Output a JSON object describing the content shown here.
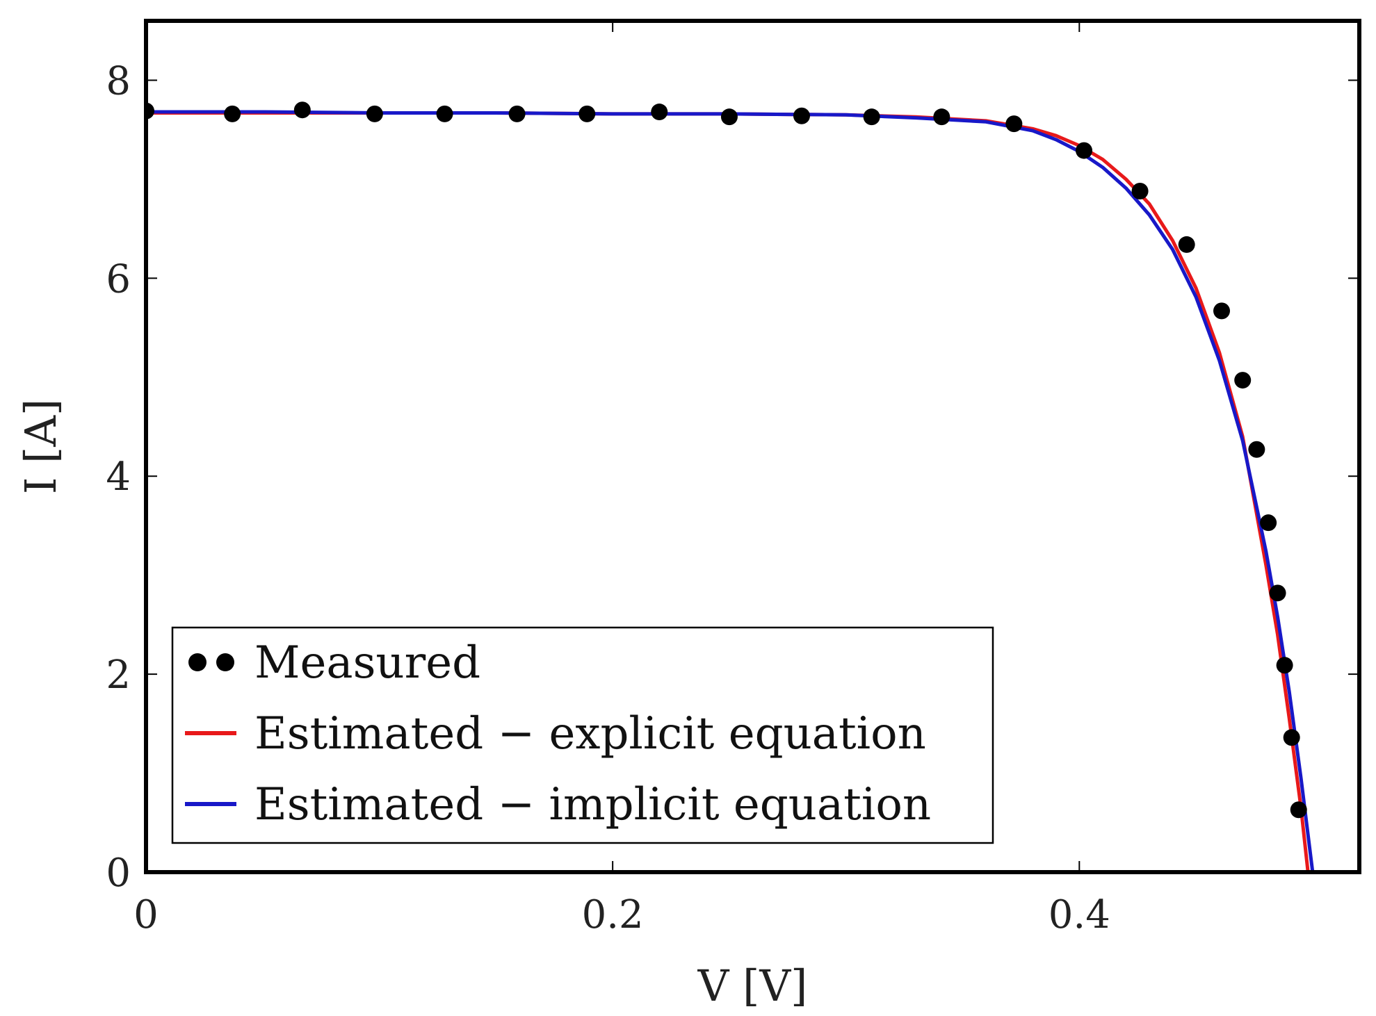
{
  "chart_data": {
    "type": "scatter",
    "title": "",
    "xlabel": "V [V]",
    "ylabel": "I [A]",
    "xlim": [
      0,
      0.52
    ],
    "ylim": [
      0,
      8.6
    ],
    "xticks": [
      0,
      0.2,
      0.4
    ],
    "xtick_labels": [
      "0",
      "0.2",
      "0.4"
    ],
    "yticks": [
      0,
      2,
      4,
      6,
      8
    ],
    "ytick_labels": [
      "0",
      "2",
      "4",
      "6",
      "8"
    ],
    "legend_position": "lower-left",
    "series": [
      {
        "name": "Measured",
        "kind": "scatter",
        "color": "#000000",
        "x": [
          0.0,
          0.037,
          0.067,
          0.098,
          0.128,
          0.159,
          0.189,
          0.22,
          0.25,
          0.281,
          0.311,
          0.341,
          0.372,
          0.402,
          0.426,
          0.446,
          0.461,
          0.47,
          0.476,
          0.481,
          0.485,
          0.488,
          0.491,
          0.494
        ],
        "y": [
          7.69,
          7.66,
          7.7,
          7.66,
          7.66,
          7.66,
          7.66,
          7.68,
          7.63,
          7.64,
          7.63,
          7.63,
          7.56,
          7.29,
          6.88,
          6.34,
          5.67,
          4.97,
          4.27,
          3.53,
          2.82,
          2.09,
          1.36,
          0.63
        ]
      },
      {
        "name": "Estimated − explicit equation",
        "kind": "line",
        "color": "#e8191a",
        "x": [
          0.0,
          0.05,
          0.1,
          0.15,
          0.2,
          0.25,
          0.3,
          0.33,
          0.36,
          0.38,
          0.39,
          0.4,
          0.41,
          0.42,
          0.43,
          0.44,
          0.45,
          0.46,
          0.47,
          0.48,
          0.485,
          0.49,
          0.495,
          0.498
        ],
        "y": [
          7.67,
          7.67,
          7.67,
          7.67,
          7.66,
          7.66,
          7.65,
          7.63,
          7.59,
          7.51,
          7.44,
          7.34,
          7.2,
          7.0,
          6.75,
          6.38,
          5.9,
          5.25,
          4.4,
          3.1,
          2.4,
          1.55,
          0.65,
          0.0
        ]
      },
      {
        "name": "Estimated − implicit equation",
        "kind": "line",
        "color": "#1818c8",
        "x": [
          0.0,
          0.05,
          0.1,
          0.15,
          0.2,
          0.25,
          0.3,
          0.33,
          0.36,
          0.38,
          0.39,
          0.4,
          0.41,
          0.42,
          0.43,
          0.44,
          0.45,
          0.46,
          0.47,
          0.48,
          0.485,
          0.49,
          0.495,
          0.5
        ],
        "y": [
          7.68,
          7.68,
          7.67,
          7.67,
          7.66,
          7.66,
          7.65,
          7.62,
          7.58,
          7.49,
          7.4,
          7.28,
          7.12,
          6.91,
          6.64,
          6.29,
          5.81,
          5.17,
          4.36,
          3.24,
          2.58,
          1.82,
          0.95,
          0.0
        ]
      }
    ]
  }
}
